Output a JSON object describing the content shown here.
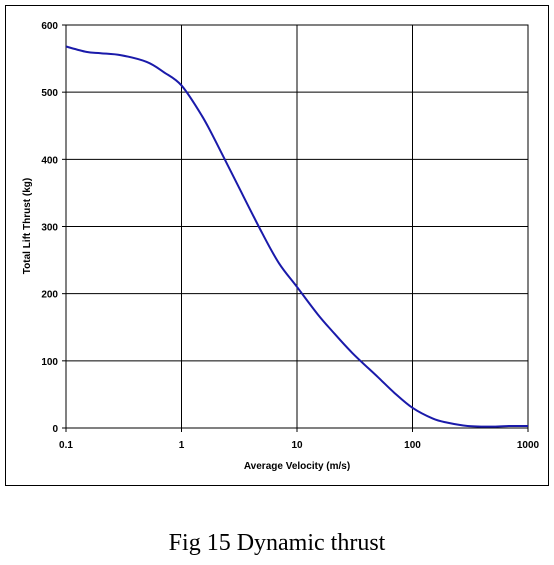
{
  "caption": "Fig 15 Dynamic thrust",
  "chart_data": {
    "type": "line",
    "xlabel": "Average Velocity (m/s)",
    "ylabel": "Total Lift Thrust (kg)",
    "x_scale": "log",
    "xlim": [
      0.1,
      1000
    ],
    "ylim": [
      0,
      600
    ],
    "x_ticks": [
      0.1,
      1,
      10,
      100,
      1000
    ],
    "x_tick_labels": [
      "0.1",
      "1",
      "10",
      "100",
      "1000"
    ],
    "y_ticks": [
      0,
      100,
      200,
      300,
      400,
      500,
      600
    ],
    "y_tick_labels": [
      "0",
      "100",
      "200",
      "300",
      "400",
      "500",
      "600"
    ],
    "grid": true,
    "line_color": "#1a1aaa",
    "series": [
      {
        "x": [
          0.1,
          0.15,
          0.2,
          0.3,
          0.5,
          0.7,
          1,
          1.5,
          2,
          3,
          5,
          7,
          10,
          15,
          20,
          30,
          50,
          70,
          100,
          150,
          200,
          300,
          500,
          700,
          1000
        ],
        "values": [
          568,
          560,
          558,
          555,
          545,
          530,
          510,
          465,
          425,
          365,
          290,
          245,
          210,
          170,
          145,
          112,
          76,
          52,
          30,
          14,
          8,
          3,
          2,
          3,
          3
        ]
      }
    ]
  }
}
